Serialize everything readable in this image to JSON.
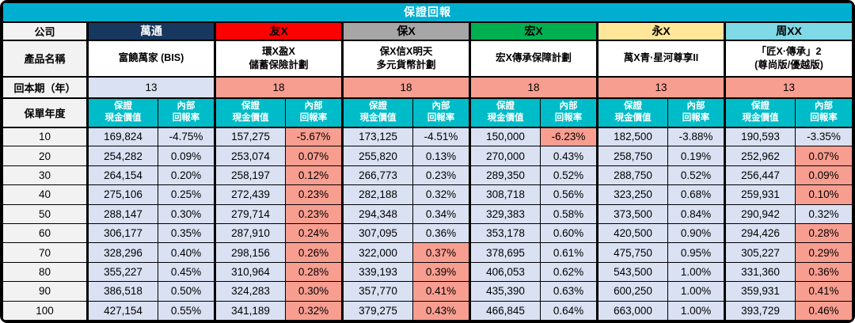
{
  "colors": {
    "title_bg": "#00AFD0",
    "subheader_bg": "#00BCC8",
    "highlight_blue": "#D9E1F2",
    "highlight_red": "#F89E90",
    "label_bg": "#F2F2F2",
    "border": "#000000"
  },
  "chart_data": {
    "type": "table",
    "title": "保證回報",
    "header_labels": {
      "company": "公司",
      "product": "產品名稱",
      "payback": "回本期（年）",
      "policy_year": "保單年度",
      "cv_lines": [
        "保證",
        "現金價值"
      ],
      "irr_lines": [
        "內部",
        "回報率"
      ]
    },
    "companies": [
      {
        "name": "萬通",
        "header_bg": "#17375E",
        "header_fg": "#FFFFFF",
        "product_lines": [
          "富饒萬家 (BIS)"
        ],
        "payback": "13",
        "payback_red": false
      },
      {
        "name": "友X",
        "header_bg": "#FF0000",
        "header_fg": "#000000",
        "product_lines": [
          "環X盈X",
          "儲蓄保險計劃"
        ],
        "payback": "18",
        "payback_red": true
      },
      {
        "name": "保X",
        "header_bg": "#A6A6A6",
        "header_fg": "#000000",
        "product_lines": [
          "保X信X明天",
          "多元貨幣計劃"
        ],
        "payback": "18",
        "payback_red": true
      },
      {
        "name": "宏X",
        "header_bg": "#00B050",
        "header_fg": "#000000",
        "product_lines": [
          "宏X傳承保障計劃"
        ],
        "payback": "18",
        "payback_red": true
      },
      {
        "name": "永X",
        "header_bg": "#FFE699",
        "header_fg": "#000000",
        "product_lines": [
          "萬X青·星河尊享II"
        ],
        "payback": "13",
        "payback_red": true
      },
      {
        "name": "周XX",
        "header_bg": "#7FD9E6",
        "header_fg": "#000000",
        "product_lines": [
          "「匠X·傳承」2",
          "(尊尚版/優越版)"
        ],
        "payback": "13",
        "payback_red": true
      }
    ],
    "rows": [
      {
        "year": "10",
        "cells": [
          [
            "169,824",
            "-4.75%",
            0
          ],
          [
            "157,275",
            "-5.67%",
            1
          ],
          [
            "173,125",
            "-4.51%",
            0
          ],
          [
            "150,000",
            "-6.23%",
            1
          ],
          [
            "182,500",
            "-3.88%",
            0
          ],
          [
            "190,593",
            "-3.35%",
            0
          ]
        ]
      },
      {
        "year": "20",
        "cells": [
          [
            "254,282",
            "0.09%",
            0
          ],
          [
            "253,074",
            "0.07%",
            1
          ],
          [
            "255,820",
            "0.13%",
            0
          ],
          [
            "270,000",
            "0.43%",
            0
          ],
          [
            "258,750",
            "0.19%",
            0
          ],
          [
            "252,962",
            "0.07%",
            1
          ]
        ]
      },
      {
        "year": "30",
        "cells": [
          [
            "264,154",
            "0.20%",
            0
          ],
          [
            "258,197",
            "0.12%",
            1
          ],
          [
            "266,773",
            "0.23%",
            0
          ],
          [
            "289,350",
            "0.52%",
            0
          ],
          [
            "288,750",
            "0.52%",
            0
          ],
          [
            "256,447",
            "0.09%",
            1
          ]
        ]
      },
      {
        "year": "40",
        "cells": [
          [
            "275,106",
            "0.25%",
            0
          ],
          [
            "272,439",
            "0.23%",
            1
          ],
          [
            "282,188",
            "0.32%",
            0
          ],
          [
            "308,718",
            "0.56%",
            0
          ],
          [
            "323,250",
            "0.68%",
            0
          ],
          [
            "259,931",
            "0.10%",
            1
          ]
        ]
      },
      {
        "year": "50",
        "cells": [
          [
            "288,147",
            "0.30%",
            0
          ],
          [
            "279,714",
            "0.23%",
            1
          ],
          [
            "294,348",
            "0.34%",
            0
          ],
          [
            "329,383",
            "0.58%",
            0
          ],
          [
            "373,500",
            "0.84%",
            0
          ],
          [
            "290,942",
            "0.32%",
            0
          ]
        ]
      },
      {
        "year": "60",
        "cells": [
          [
            "306,177",
            "0.35%",
            0
          ],
          [
            "287,910",
            "0.24%",
            1
          ],
          [
            "307,095",
            "0.36%",
            0
          ],
          [
            "353,178",
            "0.60%",
            0
          ],
          [
            "420,500",
            "0.90%",
            0
          ],
          [
            "294,426",
            "0.28%",
            1
          ]
        ]
      },
      {
        "year": "70",
        "cells": [
          [
            "328,296",
            "0.40%",
            0
          ],
          [
            "298,156",
            "0.26%",
            1
          ],
          [
            "322,000",
            "0.37%",
            1
          ],
          [
            "378,695",
            "0.61%",
            0
          ],
          [
            "475,750",
            "0.95%",
            0
          ],
          [
            "305,227",
            "0.29%",
            1
          ]
        ]
      },
      {
        "year": "80",
        "cells": [
          [
            "355,227",
            "0.45%",
            0
          ],
          [
            "310,964",
            "0.28%",
            1
          ],
          [
            "339,193",
            "0.39%",
            1
          ],
          [
            "406,053",
            "0.62%",
            0
          ],
          [
            "543,500",
            "1.00%",
            0
          ],
          [
            "331,360",
            "0.36%",
            1
          ]
        ]
      },
      {
        "year": "90",
        "cells": [
          [
            "386,518",
            "0.50%",
            0
          ],
          [
            "324,283",
            "0.30%",
            1
          ],
          [
            "357,770",
            "0.41%",
            1
          ],
          [
            "435,390",
            "0.63%",
            0
          ],
          [
            "600,250",
            "1.00%",
            0
          ],
          [
            "359,931",
            "0.41%",
            1
          ]
        ]
      },
      {
        "year": "100",
        "cells": [
          [
            "427,154",
            "0.55%",
            0
          ],
          [
            "341,189",
            "0.32%",
            1
          ],
          [
            "379,275",
            "0.43%",
            1
          ],
          [
            "466,845",
            "0.64%",
            0
          ],
          [
            "663,000",
            "1.00%",
            0
          ],
          [
            "393,729",
            "0.46%",
            1
          ]
        ]
      }
    ]
  }
}
